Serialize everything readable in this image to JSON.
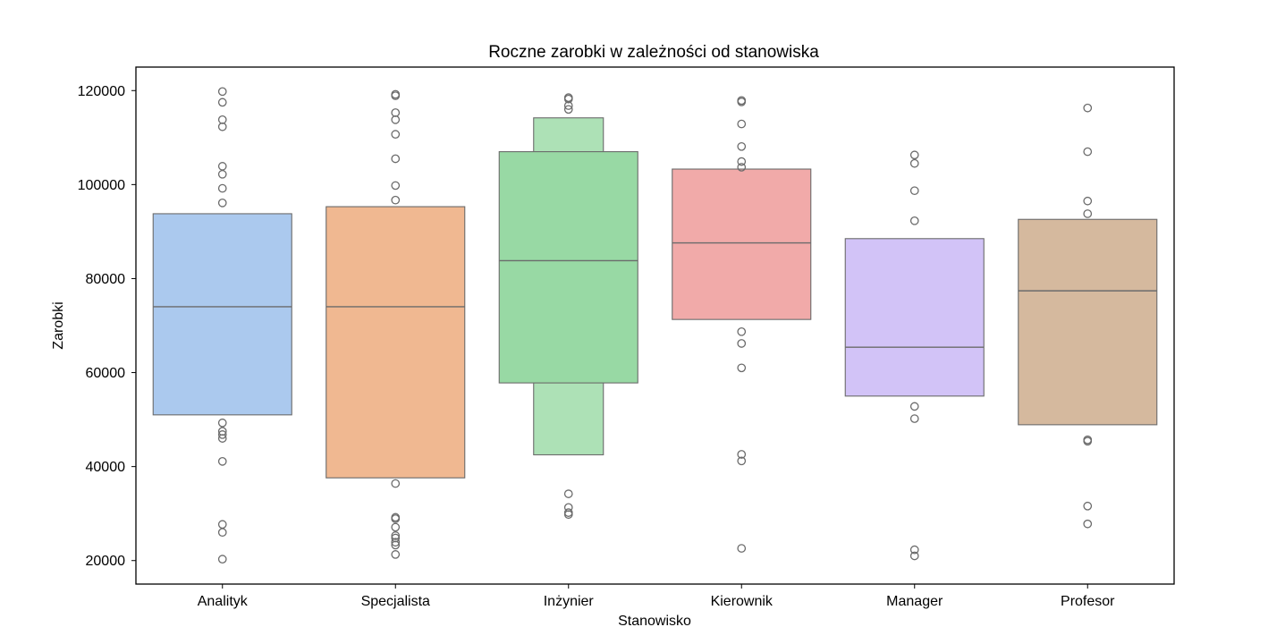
{
  "chart_data": {
    "type": "boxen",
    "title": "Roczne zarobki w zależności od stanowiska",
    "xlabel": "Stanowisko",
    "ylabel": "Zarobki",
    "ylim": [
      15000,
      125000
    ],
    "yticks": [
      20000,
      40000,
      60000,
      80000,
      100000,
      120000
    ],
    "ytick_labels": [
      "20000",
      "40000",
      "60000",
      "80000",
      "100000",
      "120000"
    ],
    "grid": false,
    "categories": [
      "Analityk",
      "Specjalista",
      "Inżynier",
      "Kierownik",
      "Manager",
      "Profesor"
    ],
    "series": [
      {
        "category": "Analityk",
        "color": "#abc9ee",
        "median": 74000,
        "boxes": [
          [
            51000,
            93800
          ]
        ],
        "outliers": [
          119800,
          117500,
          113800,
          112300,
          103900,
          102200,
          99200,
          96100,
          49300,
          47500,
          46800,
          46000,
          41100,
          27700,
          26000,
          20300
        ]
      },
      {
        "category": "Specjalista",
        "color": "#f0b891",
        "median": 74000,
        "boxes": [
          [
            37600,
            95300
          ]
        ],
        "outliers": [
          119200,
          118900,
          115300,
          113800,
          110700,
          105500,
          99800,
          96700,
          36400,
          29200,
          28900,
          27100,
          25300,
          24800,
          23900,
          23300,
          21300
        ]
      },
      {
        "category": "Inżynier",
        "color": "#98d9a4",
        "median": 83800,
        "boxes": [
          [
            57800,
            107000
          ],
          [
            42500,
            114200
          ]
        ],
        "outliers": [
          118500,
          118200,
          116800,
          116000,
          34200,
          31300,
          30200,
          29800
        ]
      },
      {
        "category": "Kierownik",
        "color": "#f1aaa9",
        "median": 87600,
        "boxes": [
          [
            71300,
            103300
          ]
        ],
        "outliers": [
          117900,
          117600,
          112900,
          108100,
          104900,
          103700,
          68700,
          66200,
          61000,
          42600,
          41200,
          22600
        ]
      },
      {
        "category": "Manager",
        "color": "#d2c3f7",
        "median": 65400,
        "boxes": [
          [
            55000,
            88500
          ]
        ],
        "outliers": [
          106300,
          104500,
          98700,
          92300,
          52800,
          50200,
          22300,
          21000
        ]
      },
      {
        "category": "Profesor",
        "color": "#d5b99e",
        "median": 77400,
        "boxes": [
          [
            48900,
            92600
          ]
        ],
        "outliers": [
          116300,
          107000,
          96500,
          93800,
          45700,
          45400,
          31600,
          27800
        ]
      }
    ]
  }
}
